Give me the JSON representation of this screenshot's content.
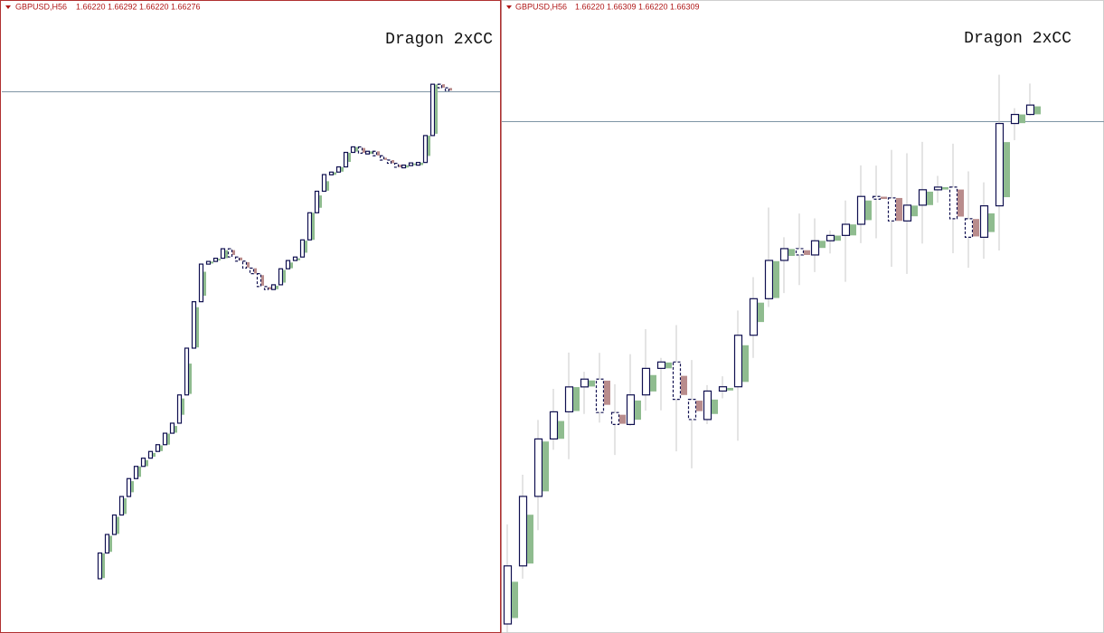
{
  "panes": [
    {
      "symbol": "GBPUSD,H56",
      "quotes": [
        "1.66220",
        "1.66292",
        "1.66220",
        "1.66276"
      ],
      "label": "Dragon 2xCC"
    },
    {
      "symbol": "GBPUSD,H56",
      "quotes": [
        "1.66220",
        "1.66309",
        "1.66220",
        "1.66309"
      ],
      "label": "Dragon 2xCC"
    }
  ]
}
